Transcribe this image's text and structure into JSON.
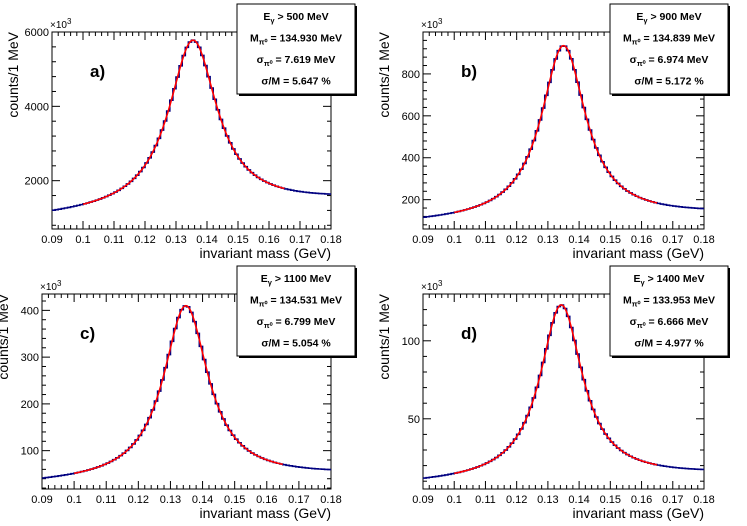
{
  "colors": {
    "histogram": "#000080",
    "fit": "#ff0000",
    "axis": "#000000"
  },
  "chart_data": [
    {
      "type": "line",
      "panel_label": "a)",
      "xlabel": "invariant mass (GeV)",
      "ylabel": "counts/1 MeV",
      "multiplier_base": "×10",
      "multiplier_exp": "3",
      "xlim": [
        0.09,
        0.18
      ],
      "ylim": [
        700,
        6000
      ],
      "xticks": [
        "0.09",
        "0.1",
        "0.11",
        "0.12",
        "0.13",
        "0.14",
        "0.15",
        "0.16",
        "0.17",
        "0.18"
      ],
      "yticks": [
        "2000",
        "4000",
        "6000"
      ],
      "stats": [
        {
          "sym": "E",
          "sub": "γ",
          "rest": " > 500 MeV"
        },
        {
          "sym": "M",
          "sub": "π⁰",
          "rest": " = 134.930 MeV"
        },
        {
          "sym": "σ",
          "sub": "π⁰",
          "rest": " = 7.619 MeV"
        },
        {
          "sym": "σ/M",
          "sub": "",
          "rest": " = 5.647 %"
        }
      ],
      "peak": {
        "mean": 0.1355,
        "sigma": 0.0095,
        "amplitude": 5780,
        "baseline_left": 1000,
        "baseline_right": 1450
      },
      "fit_range": [
        0.1,
        0.165
      ]
    },
    {
      "type": "line",
      "panel_label": "b)",
      "xlabel": "invariant mass (GeV)",
      "ylabel": "counts/1 MeV",
      "multiplier_base": "×10",
      "multiplier_exp": "3",
      "xlim": [
        0.09,
        0.18
      ],
      "ylim": [
        60,
        1000
      ],
      "xticks": [
        "0.09",
        "0.1",
        "0.11",
        "0.12",
        "0.13",
        "0.14",
        "0.15",
        "0.16",
        "0.17",
        "0.18"
      ],
      "yticks": [
        "200",
        "400",
        "600",
        "800"
      ],
      "stats": [
        {
          "sym": "E",
          "sub": "γ",
          "rest": " > 900 MeV"
        },
        {
          "sym": "M",
          "sub": "π⁰",
          "rest": " = 134.839 MeV"
        },
        {
          "sym": "σ",
          "sub": "π⁰",
          "rest": " = 6.974 MeV"
        },
        {
          "sym": "σ/M",
          "sub": "",
          "rest": " = 5.172 %"
        }
      ],
      "peak": {
        "mean": 0.135,
        "sigma": 0.0087,
        "amplitude": 935,
        "baseline_left": 85,
        "baseline_right": 128
      },
      "fit_range": [
        0.1,
        0.165
      ]
    },
    {
      "type": "line",
      "panel_label": "c)",
      "xlabel": "invariant mass (GeV)",
      "ylabel": "counts/1 MeV",
      "multiplier_base": "×10",
      "multiplier_exp": "3",
      "xlim": [
        0.09,
        0.18
      ],
      "ylim": [
        18,
        435
      ],
      "xticks": [
        "0.09",
        "0.1",
        "0.11",
        "0.12",
        "0.13",
        "0.14",
        "0.15",
        "0.16",
        "0.17",
        "0.18"
      ],
      "yticks": [
        "100",
        "200",
        "300",
        "400"
      ],
      "stats": [
        {
          "sym": "E",
          "sub": "γ",
          "rest": " > 1100 MeV"
        },
        {
          "sym": "M",
          "sub": "π⁰",
          "rest": " = 134.531 MeV"
        },
        {
          "sym": "σ",
          "sub": "π⁰",
          "rest": " = 6.799 MeV"
        },
        {
          "sym": "σ/M",
          "sub": "",
          "rest": " = 5.054 %"
        }
      ],
      "peak": {
        "mean": 0.1348,
        "sigma": 0.0085,
        "amplitude": 410,
        "baseline_left": 28,
        "baseline_right": 47
      },
      "fit_range": [
        0.1,
        0.165
      ]
    },
    {
      "type": "line",
      "panel_label": "d)",
      "xlabel": "invariant mass (GeV)",
      "ylabel": "counts/1 MeV",
      "multiplier_base": "×10",
      "multiplier_exp": "3",
      "xlim": [
        0.09,
        0.18
      ],
      "ylim": [
        5,
        130
      ],
      "xticks": [
        "0.09",
        "0.1",
        "0.11",
        "0.12",
        "0.13",
        "0.14",
        "0.15",
        "0.16",
        "0.17",
        "0.18"
      ],
      "yticks": [
        "50",
        "100"
      ],
      "stats": [
        {
          "sym": "E",
          "sub": "γ",
          "rest": " > 1400 MeV"
        },
        {
          "sym": "M",
          "sub": "π⁰",
          "rest": " = 133.953 MeV"
        },
        {
          "sym": "σ",
          "sub": "π⁰",
          "rest": " = 6.666 MeV"
        },
        {
          "sym": "σ/M",
          "sub": "",
          "rest": " = 4.977 %"
        }
      ],
      "peak": {
        "mean": 0.1343,
        "sigma": 0.0083,
        "amplitude": 123,
        "baseline_left": 8,
        "baseline_right": 14
      },
      "fit_range": [
        0.1,
        0.165
      ]
    }
  ]
}
